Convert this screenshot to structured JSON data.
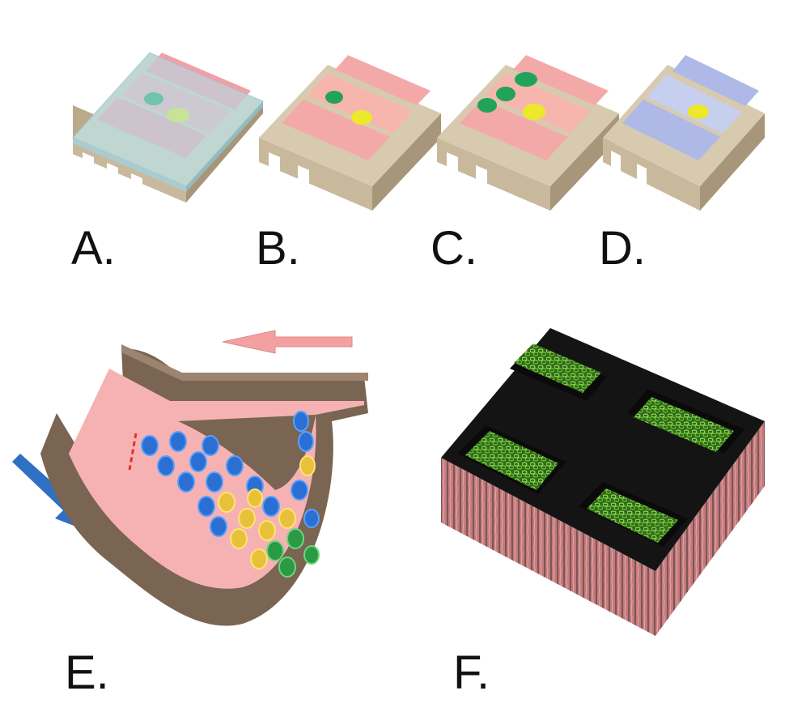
{
  "labels": {
    "a": "A.",
    "b": "B.",
    "c": "C.",
    "d": "D.",
    "e": "E.",
    "f": "F."
  },
  "colors": {
    "substrate": "#cdbfa4",
    "channel_pink": "#f5a5a5",
    "channel_blue": "#a9b6e6",
    "lid_blue": "#aee0ee",
    "green_cell": "#23a35a",
    "yellow_cell": "#ece82a",
    "tissue_brown": "#7a6452",
    "flow_pink": "#f4a0a0",
    "flow_blue": "#2f6fc4",
    "cell_blue": "#2b6fd2",
    "cell_yellow": "#e8c13a",
    "cell_green": "#2b9a45",
    "scaffold_black": "#121212",
    "tissue_green": "#6ac83a",
    "scaffold_side": "#c57a7a"
  },
  "icons": {
    "pink_arrow": "arrow-left-icon",
    "blue_arrow": "arrow-down-right-icon"
  }
}
